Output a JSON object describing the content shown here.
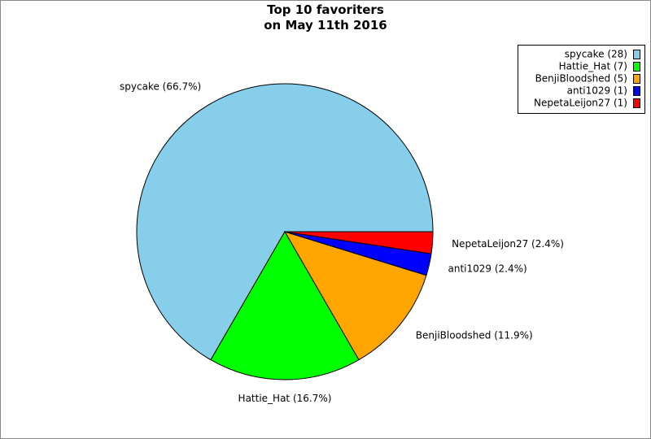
{
  "chart_data": {
    "type": "pie",
    "title": "Top 10 favoriters\non May 11th 2016",
    "values": [
      28,
      7,
      5,
      1,
      1
    ],
    "slice_labels": [
      "spycake (66.7%)",
      "Hattie_Hat (16.7%)",
      "BenjiBloodshed (11.9%)",
      "anti1029 (2.4%)",
      "NepetaLeijon27 (2.4%)"
    ],
    "legend_labels": [
      "spycake (28)",
      "Hattie_Hat (7)",
      "BenjiBloodshed (5)",
      "anti1029 (1)",
      "NepetaLeijon27 (1)"
    ],
    "colors": [
      "#87ceeb",
      "#00ff00",
      "#ffa500",
      "#0000ff",
      "#ff0000"
    ],
    "legend": "upper right"
  }
}
